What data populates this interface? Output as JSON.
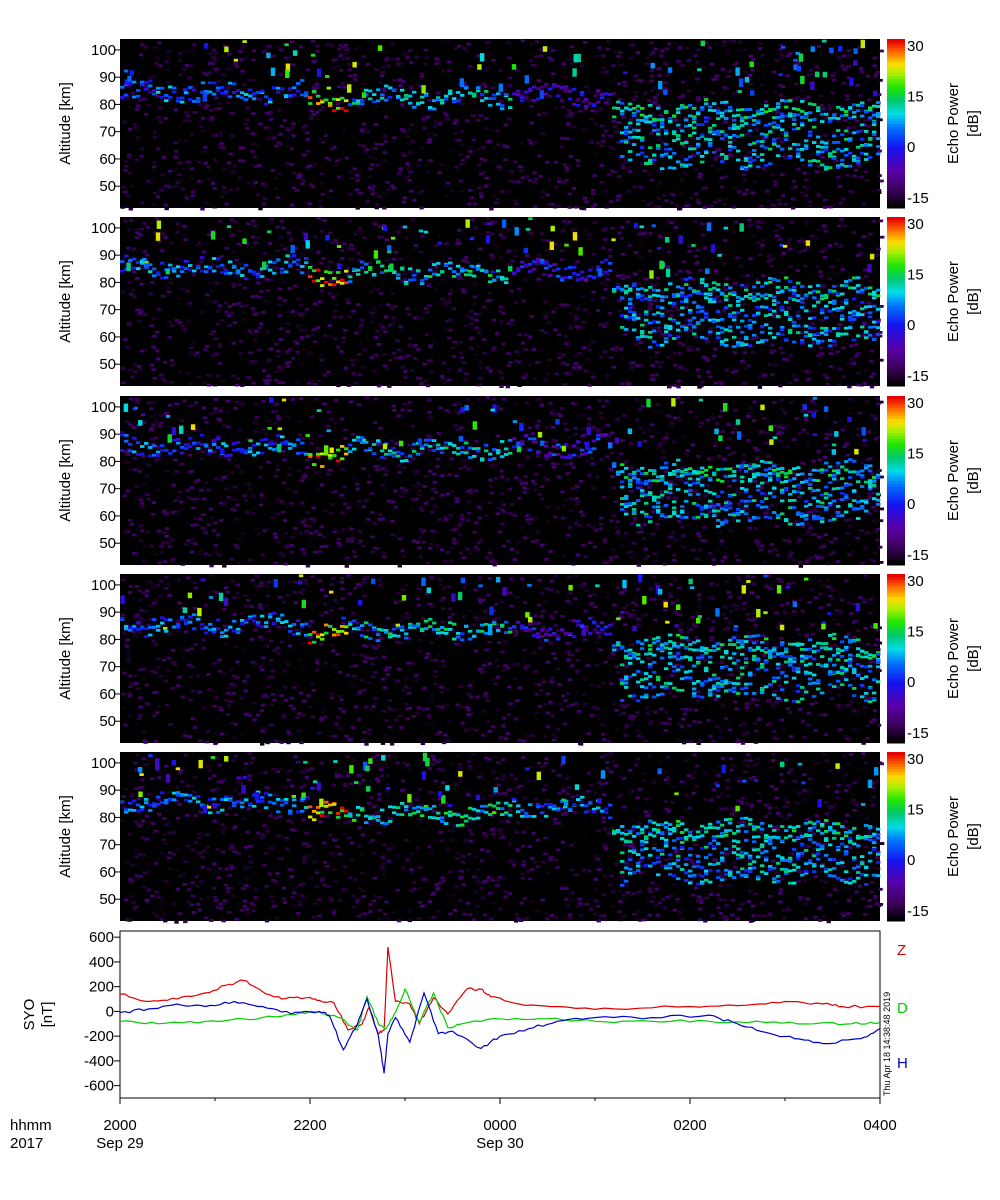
{
  "chart_data": [
    {
      "type": "heatmap",
      "panel": 1,
      "ylabel": "Altitude [km]",
      "yticks": [
        "100",
        "90",
        "80",
        "70",
        "60",
        "50"
      ],
      "ylim": [
        42,
        104
      ],
      "cbar_label": "Echo Power",
      "cbar_unit": "[dB]",
      "cbar_ticks": [
        "30",
        "15",
        "0",
        "-15"
      ],
      "cbar_range": [
        -18,
        32
      ],
      "echo_layers": [
        {
          "t": [
            0,
            0.25
          ],
          "alt": 85,
          "power": 4
        },
        {
          "t": [
            0.25,
            0.3
          ],
          "alt": 82,
          "power": 30
        },
        {
          "t": [
            0.3,
            0.52
          ],
          "alt": 83,
          "power": 8
        },
        {
          "t": [
            0.52,
            0.65
          ],
          "alt": 84,
          "power": -5
        },
        {
          "t": [
            0.65,
            1.0
          ],
          "alt": 78,
          "power": 10
        },
        {
          "t": [
            0.66,
            1.0
          ],
          "alt": 67,
          "power": 8
        }
      ]
    },
    {
      "type": "heatmap",
      "panel": 2,
      "ylabel": "Altitude [km]",
      "yticks": [
        "100",
        "90",
        "80",
        "70",
        "60",
        "50"
      ],
      "ylim": [
        42,
        104
      ],
      "cbar_label": "Echo Power",
      "cbar_unit": "[dB]",
      "cbar_ticks": [
        "30",
        "15",
        "0",
        "-15"
      ],
      "cbar_range": [
        -18,
        32
      ],
      "echo_layers": [
        {
          "t": [
            0,
            0.25
          ],
          "alt": 86,
          "power": 4
        },
        {
          "t": [
            0.25,
            0.3
          ],
          "alt": 83,
          "power": 30
        },
        {
          "t": [
            0.3,
            0.52
          ],
          "alt": 84,
          "power": 10
        },
        {
          "t": [
            0.52,
            0.65
          ],
          "alt": 85,
          "power": -2
        },
        {
          "t": [
            0.65,
            1.0
          ],
          "alt": 78,
          "power": 9
        },
        {
          "t": [
            0.66,
            1.0
          ],
          "alt": 67,
          "power": 7
        }
      ]
    },
    {
      "type": "heatmap",
      "panel": 3,
      "ylabel": "Altitude [km]",
      "yticks": [
        "100",
        "90",
        "80",
        "70",
        "60",
        "50"
      ],
      "ylim": [
        42,
        104
      ],
      "cbar_label": "Echo Power",
      "cbar_unit": "[dB]",
      "cbar_ticks": [
        "30",
        "15",
        "0",
        "-15"
      ],
      "cbar_range": [
        -18,
        32
      ],
      "echo_layers": [
        {
          "t": [
            0,
            0.25
          ],
          "alt": 86,
          "power": 3
        },
        {
          "t": [
            0.25,
            0.3
          ],
          "alt": 83,
          "power": 30
        },
        {
          "t": [
            0.3,
            0.52
          ],
          "alt": 85,
          "power": 8
        },
        {
          "t": [
            0.52,
            0.65
          ],
          "alt": 86,
          "power": -2
        },
        {
          "t": [
            0.65,
            1.0
          ],
          "alt": 77,
          "power": 10
        },
        {
          "t": [
            0.66,
            1.0
          ],
          "alt": 67,
          "power": 8
        }
      ]
    },
    {
      "type": "heatmap",
      "panel": 4,
      "ylabel": "Altitude [km]",
      "yticks": [
        "100",
        "90",
        "80",
        "70",
        "60",
        "50"
      ],
      "ylim": [
        42,
        104
      ],
      "cbar_label": "Echo Power",
      "cbar_unit": "[dB]",
      "cbar_ticks": [
        "30",
        "15",
        "0",
        "-15"
      ],
      "cbar_range": [
        -18,
        32
      ],
      "echo_layers": [
        {
          "t": [
            0,
            0.25
          ],
          "alt": 86,
          "power": 4
        },
        {
          "t": [
            0.25,
            0.3
          ],
          "alt": 83,
          "power": 30
        },
        {
          "t": [
            0.3,
            0.52
          ],
          "alt": 84,
          "power": 9
        },
        {
          "t": [
            0.52,
            0.65
          ],
          "alt": 84,
          "power": -3
        },
        {
          "t": [
            0.65,
            1.0
          ],
          "alt": 78,
          "power": 10
        },
        {
          "t": [
            0.66,
            1.0
          ],
          "alt": 68,
          "power": 8
        }
      ]
    },
    {
      "type": "heatmap",
      "panel": 5,
      "ylabel": "Altitude [km]",
      "yticks": [
        "100",
        "90",
        "80",
        "70",
        "60",
        "50"
      ],
      "ylim": [
        42,
        104
      ],
      "cbar_label": "Echo Power",
      "cbar_unit": "[dB]",
      "cbar_ticks": [
        "30",
        "15",
        "0",
        "-15"
      ],
      "cbar_range": [
        -18,
        32
      ],
      "echo_layers": [
        {
          "t": [
            0,
            0.25
          ],
          "alt": 86,
          "power": 5
        },
        {
          "t": [
            0.25,
            0.3
          ],
          "alt": 82,
          "power": 30
        },
        {
          "t": [
            0.3,
            0.52
          ],
          "alt": 82,
          "power": 12
        },
        {
          "t": [
            0.52,
            0.65
          ],
          "alt": 84,
          "power": 5
        },
        {
          "t": [
            0.65,
            1.0
          ],
          "alt": 76,
          "power": 10
        },
        {
          "t": [
            0.66,
            1.0
          ],
          "alt": 66,
          "power": 7
        }
      ]
    },
    {
      "type": "line",
      "panel": 6,
      "ylabel": "SYO",
      "yunit": "[nT]",
      "ylim": [
        -700,
        650
      ],
      "yticks": [
        "600",
        "400",
        "200",
        "0",
        "-200",
        "-400",
        "-600"
      ],
      "series": [
        {
          "name": "Z",
          "color": "#dd0000",
          "hours": [
            0,
            0.3,
            0.6,
            0.9,
            1.15,
            1.3,
            1.5,
            1.7,
            1.95,
            2.1,
            2.25,
            2.4,
            2.55,
            2.62,
            2.72,
            2.78,
            2.82,
            2.9,
            3.05,
            3.15,
            3.3,
            3.45,
            3.65,
            3.8,
            3.9,
            4.2,
            4.6,
            5.2,
            6.0,
            6.6,
            7.0,
            7.4,
            7.6,
            8.0
          ],
          "values": [
            140,
            80,
            100,
            150,
            220,
            250,
            160,
            100,
            110,
            90,
            70,
            -150,
            -100,
            30,
            -180,
            -150,
            520,
            80,
            60,
            -100,
            110,
            -20,
            180,
            180,
            120,
            60,
            40,
            20,
            40,
            50,
            80,
            60,
            40,
            40
          ]
        },
        {
          "name": "D",
          "color": "#00cc00",
          "hours": [
            0,
            0.4,
            0.9,
            1.3,
            1.7,
            2.0,
            2.3,
            2.5,
            2.6,
            2.72,
            2.8,
            2.9,
            3.0,
            3.15,
            3.3,
            3.45,
            3.6,
            4.0,
            4.5,
            5.0,
            5.6,
            6.2,
            6.8,
            7.3,
            7.7,
            8.0
          ],
          "values": [
            -80,
            -100,
            -80,
            -60,
            -40,
            0,
            -50,
            -150,
            120,
            -100,
            -140,
            -10,
            180,
            -90,
            150,
            -130,
            -100,
            -60,
            -60,
            -80,
            -80,
            -80,
            -90,
            -100,
            -100,
            -90
          ]
        },
        {
          "name": "H",
          "color": "#0000cc",
          "hours": [
            0,
            0.3,
            0.6,
            0.9,
            1.2,
            1.5,
            1.8,
            2.1,
            2.2,
            2.35,
            2.5,
            2.6,
            2.72,
            2.78,
            2.82,
            2.9,
            3.05,
            3.2,
            3.35,
            3.5,
            3.8,
            4.0,
            4.3,
            4.6,
            5.0,
            5.6,
            6.2,
            6.5,
            6.8,
            7.1,
            7.4,
            7.8,
            8.0
          ],
          "values": [
            -10,
            20,
            60,
            40,
            80,
            40,
            -20,
            0,
            -30,
            -310,
            -100,
            100,
            -200,
            -500,
            -180,
            -50,
            -250,
            150,
            -180,
            -160,
            -300,
            -200,
            -140,
            -80,
            -50,
            -50,
            -30,
            -100,
            -170,
            -220,
            -260,
            -220,
            -140
          ]
        }
      ]
    }
  ],
  "time_axis": {
    "ticks": [
      "2000",
      "2200",
      "0000",
      "0200",
      "0400"
    ],
    "range_hours": 8,
    "row_labels": [
      "hhmm",
      "2017"
    ],
    "date_labels": [
      {
        "text": "Sep 29",
        "at": 0
      },
      {
        "text": "Sep 30",
        "at": 4
      }
    ]
  },
  "timestamp": "Thu Apr 18 14:38:48 2019"
}
